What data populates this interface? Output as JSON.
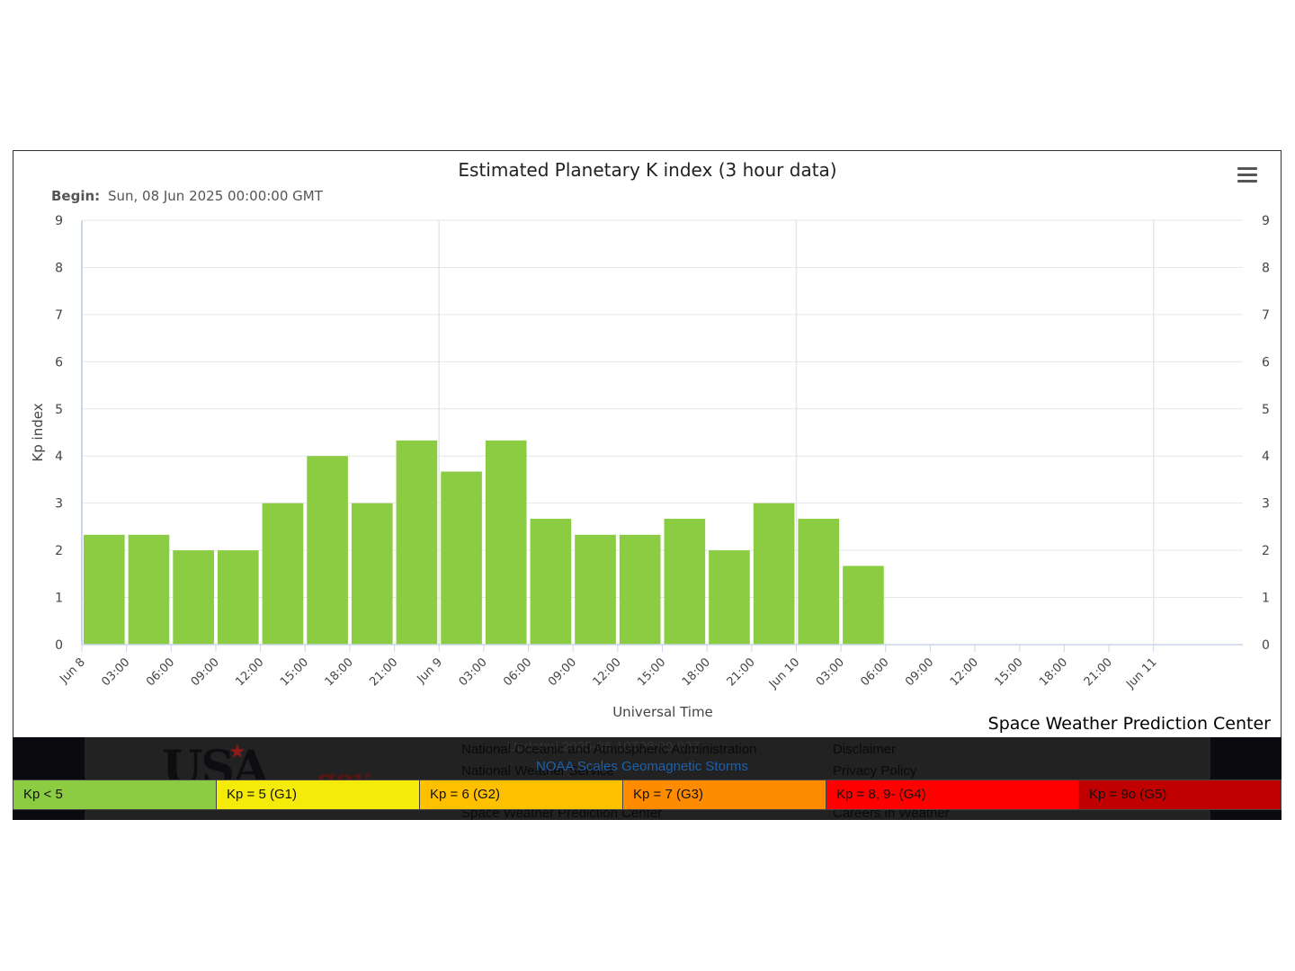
{
  "chart_data": {
    "type": "bar",
    "title": "Estimated Planetary K index (3 hour data)",
    "subtitle_label": "Begin:",
    "subtitle_value": "Sun, 08 Jun 2025 00:00:00 GMT",
    "ylabel": "Kp index",
    "xlabel": "Universal Time",
    "ylim": [
      0,
      9
    ],
    "yticks": [
      0,
      1,
      2,
      3,
      4,
      5,
      6,
      7,
      8,
      9
    ],
    "x_start": "2025-06-08 00:00",
    "x_end": "2025-06-11 06:00",
    "x_tick_labels": [
      "Jun 8",
      "03:00",
      "06:00",
      "09:00",
      "12:00",
      "15:00",
      "18:00",
      "21:00",
      "Jun 9",
      "03:00",
      "06:00",
      "09:00",
      "12:00",
      "15:00",
      "18:00",
      "21:00",
      "Jun 10",
      "03:00",
      "06:00",
      "09:00",
      "12:00",
      "15:00",
      "18:00",
      "21:00",
      "Jun 11"
    ],
    "bar_times": [
      "2025-06-08 00:00",
      "2025-06-08 03:00",
      "2025-06-08 06:00",
      "2025-06-08 09:00",
      "2025-06-08 12:00",
      "2025-06-08 15:00",
      "2025-06-08 18:00",
      "2025-06-08 21:00",
      "2025-06-09 00:00",
      "2025-06-09 03:00",
      "2025-06-09 06:00",
      "2025-06-09 09:00",
      "2025-06-09 12:00",
      "2025-06-09 15:00",
      "2025-06-09 18:00",
      "2025-06-09 21:00",
      "2025-06-10 00:00",
      "2025-06-10 03:00"
    ],
    "values": [
      2.33,
      2.33,
      2.0,
      2.0,
      3.0,
      4.0,
      3.0,
      4.33,
      3.67,
      4.33,
      2.67,
      2.33,
      2.33,
      2.67,
      2.0,
      3.0,
      2.67,
      1.67
    ],
    "bar_color": "#8bcc43",
    "grid": true,
    "dual_y_axis": true
  },
  "credit": "Space Weather Prediction Center",
  "menu_icon": "hamburger-menu-icon",
  "footer": {
    "links_left": [
      "National Oceanic and Atmospheric Administration",
      "National Weather Service",
      "Space Weather Prediction Center"
    ],
    "links_right": [
      "Disclaimer",
      "Privacy Policy",
      "Careers in Weather"
    ],
    "ghost_text": "Updated 2025-06-10T08:00:00Z",
    "scales_link": "NOAA Scales Geomagnetic Storms",
    "logo_text": "USA",
    "logo_suffix": ".gov"
  },
  "kp_scale": [
    {
      "label": "Kp < 5",
      "color": "#8bcc43"
    },
    {
      "label": "Kp = 5 (G1)",
      "color": "#f5eb0a"
    },
    {
      "label": "Kp = 6 (G2)",
      "color": "#ffc000"
    },
    {
      "label": "Kp = 7 (G3)",
      "color": "#ff8c00"
    },
    {
      "label": "Kp = 8, 9- (G4)",
      "color": "#ff0000"
    },
    {
      "label": "Kp = 9o (G5)",
      "color": "#c00000"
    }
  ]
}
